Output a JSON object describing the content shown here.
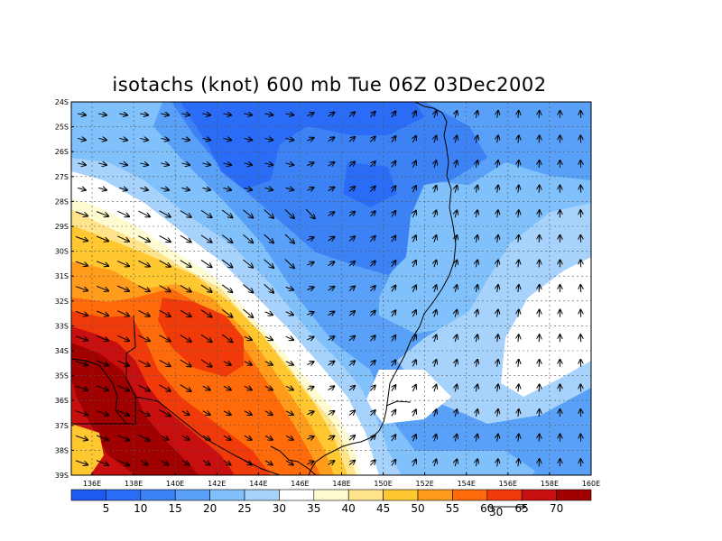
{
  "title": "isotachs (knot) 600 mb Tue 06Z 03Dec2002",
  "map": {
    "lon_range": [
      135,
      160
    ],
    "lat_range": [
      -39,
      -24
    ],
    "lon_ticks": [
      "136E",
      "138E",
      "140E",
      "142E",
      "144E",
      "146E",
      "148E",
      "150E",
      "152E",
      "154E",
      "156E",
      "158E",
      "160E"
    ],
    "lat_ticks": [
      "24S",
      "25S",
      "26S",
      "27S",
      "28S",
      "29S",
      "30S",
      "31S",
      "32S",
      "33S",
      "34S",
      "35S",
      "36S",
      "37S",
      "38S",
      "39S"
    ],
    "grid": "dashed",
    "vectors": "wind arrows"
  },
  "colorbar": {
    "labels": [
      "5",
      "10",
      "15",
      "20",
      "25",
      "30",
      "35",
      "40",
      "45",
      "50",
      "55",
      "60",
      "65",
      "70"
    ],
    "colors": [
      "#1c5af0",
      "#2a6cf5",
      "#3c82f5",
      "#58a0f8",
      "#80c0fb",
      "#a6d2fb",
      "#ffffff",
      "#fffbd0",
      "#ffe48c",
      "#ffc830",
      "#ff9c1c",
      "#ff6a0a",
      "#f03a0a",
      "#c80f0f",
      "#a00000"
    ]
  },
  "reference_vector": {
    "label": "30"
  },
  "fill_levels": {
    "ramp": [
      "#1c5af0",
      "#2a6cf5",
      "#3c82f5",
      "#58a0f8",
      "#80c0fb",
      "#a6d2fb",
      "#ffffff",
      "#fffbd0",
      "#ffe48c",
      "#ffc830",
      "#ff9c1c",
      "#ff6a0a",
      "#f03a0a",
      "#c80f0f",
      "#a00000"
    ],
    "land": "#000000"
  }
}
